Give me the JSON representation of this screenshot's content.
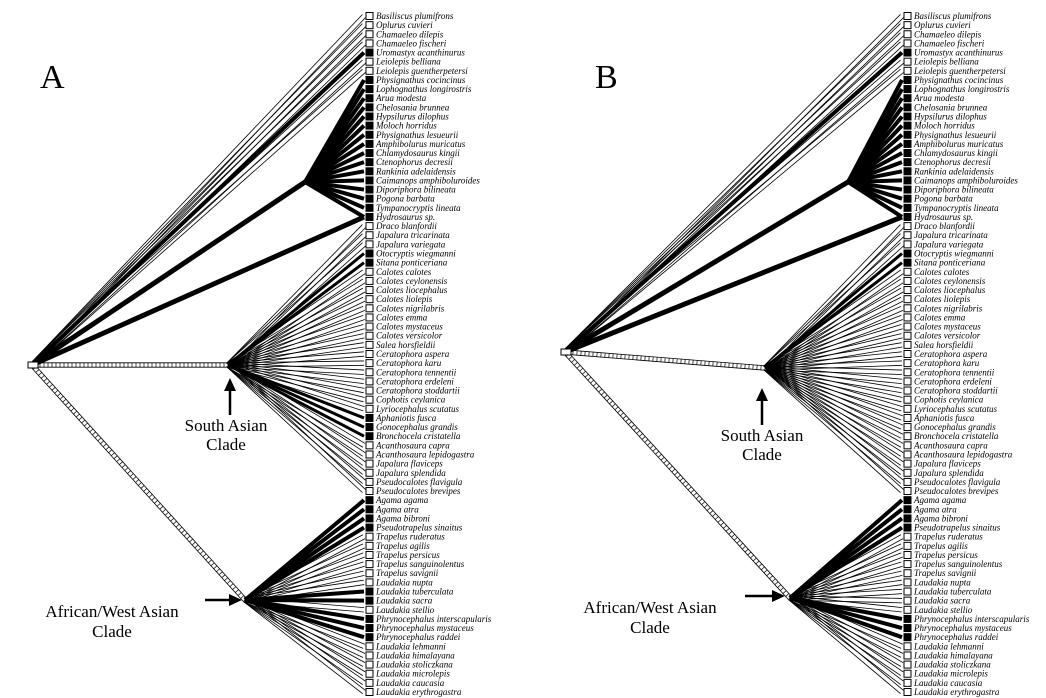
{
  "figure": {
    "panels": [
      {
        "id": "A",
        "letter": "A",
        "clade_labels": [
          {
            "id": "south-asian",
            "lines": [
              "South Asian",
              "Clade"
            ]
          },
          {
            "id": "african-west-asian",
            "lines": [
              "African/West Asian",
              "Clade"
            ]
          }
        ]
      },
      {
        "id": "B",
        "letter": "B",
        "clade_labels": [
          {
            "id": "south-asian",
            "lines": [
              "South Asian",
              "Clade"
            ]
          },
          {
            "id": "african-west-asian",
            "lines": [
              "African/West Asian",
              "Clade"
            ]
          }
        ]
      }
    ]
  },
  "taxa": [
    {
      "name": "Basiliscus plumifrons",
      "state_A": "open",
      "state_B": "open"
    },
    {
      "name": "Oplurus cuvieri",
      "state_A": "open",
      "state_B": "open"
    },
    {
      "name": "Chamaeleo dilepis",
      "state_A": "open",
      "state_B": "open"
    },
    {
      "name": "Chamaeleo fischeri",
      "state_A": "open",
      "state_B": "open"
    },
    {
      "name": "Uromastyx acanthinurus",
      "state_A": "filled",
      "state_B": "filled"
    },
    {
      "name": "Leiolepis belliana",
      "state_A": "open",
      "state_B": "open"
    },
    {
      "name": "Leiolepis guentherpetersi",
      "state_A": "open",
      "state_B": "open"
    },
    {
      "name": "Physignathus cocincinus",
      "state_A": "filled",
      "state_B": "filled"
    },
    {
      "name": "Lophognathus longirostris",
      "state_A": "filled",
      "state_B": "filled"
    },
    {
      "name": "Arua modesta",
      "state_A": "filled",
      "state_B": "filled"
    },
    {
      "name": "Chelosania brunnea",
      "state_A": "filled",
      "state_B": "filled"
    },
    {
      "name": "Hypsilurus dilophus",
      "state_A": "filled",
      "state_B": "filled"
    },
    {
      "name": "Moloch horridus",
      "state_A": "filled",
      "state_B": "filled"
    },
    {
      "name": "Physignathus lesueurii",
      "state_A": "filled",
      "state_B": "filled"
    },
    {
      "name": "Amphibolurus muricatus",
      "state_A": "filled",
      "state_B": "filled"
    },
    {
      "name": "Chlamydosaurus kingii",
      "state_A": "filled",
      "state_B": "filled"
    },
    {
      "name": "Ctenophorus decresii",
      "state_A": "filled",
      "state_B": "filled"
    },
    {
      "name": "Rankinia adelaidensis",
      "state_A": "filled",
      "state_B": "filled"
    },
    {
      "name": "Caimanops amphiboluroides",
      "state_A": "filled",
      "state_B": "filled"
    },
    {
      "name": "Diporiphora bilineata",
      "state_A": "filled",
      "state_B": "filled"
    },
    {
      "name": "Pogona barbata",
      "state_A": "filled",
      "state_B": "filled"
    },
    {
      "name": "Tympanocryptis lineata",
      "state_A": "filled",
      "state_B": "filled"
    },
    {
      "name": "Hydrosaurus sp.",
      "state_A": "filled",
      "state_B": "filled"
    },
    {
      "name": "Draco blanfordii",
      "state_A": "open",
      "state_B": "open"
    },
    {
      "name": "Japalura tricarinata",
      "state_A": "open",
      "state_B": "open"
    },
    {
      "name": "Japalura variegata",
      "state_A": "open",
      "state_B": "open"
    },
    {
      "name": "Otocryptis wiegmanni",
      "state_A": "filled",
      "state_B": "filled"
    },
    {
      "name": "Sitana ponticeriana",
      "state_A": "filled",
      "state_B": "filled"
    },
    {
      "name": "Calotes calotes",
      "state_A": "open",
      "state_B": "open"
    },
    {
      "name": "Calotes ceylonensis",
      "state_A": "open",
      "state_B": "open"
    },
    {
      "name": "Calotes liocephalus",
      "state_A": "open",
      "state_B": "open"
    },
    {
      "name": "Calotes liolepis",
      "state_A": "open",
      "state_B": "open"
    },
    {
      "name": "Calotes nigrilabris",
      "state_A": "open",
      "state_B": "open"
    },
    {
      "name": "Calotes emma",
      "state_A": "open",
      "state_B": "open"
    },
    {
      "name": "Calotes mystaceus",
      "state_A": "open",
      "state_B": "open"
    },
    {
      "name": "Calotes versicolor",
      "state_A": "open",
      "state_B": "open"
    },
    {
      "name": "Salea horsfieldii",
      "state_A": "open",
      "state_B": "open"
    },
    {
      "name": "Ceratophora aspera",
      "state_A": "open",
      "state_B": "open"
    },
    {
      "name": "Ceratophora karu",
      "state_A": "open",
      "state_B": "open"
    },
    {
      "name": "Ceratophora tennentii",
      "state_A": "open",
      "state_B": "open"
    },
    {
      "name": "Ceratophora erdeleni",
      "state_A": "open",
      "state_B": "open"
    },
    {
      "name": "Ceratophora stoddartii",
      "state_A": "open",
      "state_B": "open"
    },
    {
      "name": "Cophotis ceylanica",
      "state_A": "open",
      "state_B": "open"
    },
    {
      "name": "Lyriocephalus scutatus",
      "state_A": "open",
      "state_B": "open"
    },
    {
      "name": "Aphaniotis fusca",
      "state_A": "filled",
      "state_B": "open"
    },
    {
      "name": "Gonocephalus grandis",
      "state_A": "filled",
      "state_B": "open"
    },
    {
      "name": "Bronchocela cristatella",
      "state_A": "filled",
      "state_B": "open"
    },
    {
      "name": "Acanthosaura capra",
      "state_A": "open",
      "state_B": "open"
    },
    {
      "name": "Acanthosaura lepidogastra",
      "state_A": "open",
      "state_B": "open"
    },
    {
      "name": "Japalura flaviceps",
      "state_A": "open",
      "state_B": "open"
    },
    {
      "name": "Japalura splendida",
      "state_A": "open",
      "state_B": "open"
    },
    {
      "name": "Pseudocalotes flavigula",
      "state_A": "open",
      "state_B": "open"
    },
    {
      "name": "Pseudocalotes brevipes",
      "state_A": "open",
      "state_B": "open"
    },
    {
      "name": "Agama agama",
      "state_A": "filled",
      "state_B": "filled"
    },
    {
      "name": "Agama atra",
      "state_A": "filled",
      "state_B": "filled"
    },
    {
      "name": "Agama bibroni",
      "state_A": "filled",
      "state_B": "filled"
    },
    {
      "name": "Pseudotrapelus sinaitus",
      "state_A": "filled",
      "state_B": "filled"
    },
    {
      "name": "Trapelus ruderatus",
      "state_A": "open",
      "state_B": "open"
    },
    {
      "name": "Trapelus agilis",
      "state_A": "open",
      "state_B": "open"
    },
    {
      "name": "Trapelus persicus",
      "state_A": "open",
      "state_B": "open"
    },
    {
      "name": "Trapelus sanguinolentus",
      "state_A": "open",
      "state_B": "open"
    },
    {
      "name": "Trapelus savignii",
      "state_A": "open",
      "state_B": "open"
    },
    {
      "name": "Laudakia nupta",
      "state_A": "open",
      "state_B": "open"
    },
    {
      "name": "Laudakia tuberculata",
      "state_A": "filled",
      "state_B": "open"
    },
    {
      "name": "Laudakia sacra",
      "state_A": "filled",
      "state_B": "open"
    },
    {
      "name": "Laudakia stellio",
      "state_A": "open",
      "state_B": "open"
    },
    {
      "name": "Phrynocephalus interscapularis",
      "state_A": "filled",
      "state_B": "filled"
    },
    {
      "name": "Phrynocephalus mystaceus",
      "state_A": "filled",
      "state_B": "filled"
    },
    {
      "name": "Phrynocephalus raddei",
      "state_A": "filled",
      "state_B": "filled"
    },
    {
      "name": "Laudakia lehmanni",
      "state_A": "open",
      "state_B": "open"
    },
    {
      "name": "Laudakia himalayana",
      "state_A": "open",
      "state_B": "open"
    },
    {
      "name": "Laudakia stoliczkana",
      "state_A": "open",
      "state_B": "open"
    },
    {
      "name": "Laudakia microlepis",
      "state_A": "open",
      "state_B": "open"
    },
    {
      "name": "Laudakia caucasia",
      "state_A": "open",
      "state_B": "open"
    },
    {
      "name": "Laudakia erythrogastra",
      "state_A": "open",
      "state_B": "open"
    }
  ]
}
